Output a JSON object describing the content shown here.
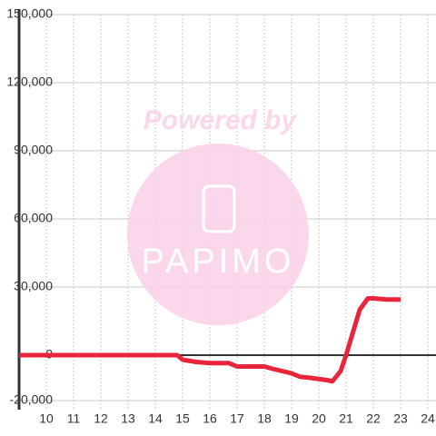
{
  "chart_data": {
    "type": "line",
    "x": [
      9,
      14.8,
      15,
      15.5,
      16,
      16.7,
      17,
      18,
      18.3,
      19,
      19.3,
      19.7,
      20,
      20.3,
      20.5,
      20.8,
      21,
      21.5,
      21.8,
      22,
      22.5,
      23
    ],
    "series": [
      {
        "color": "#e8253b",
        "values": [
          0,
          0,
          -2000,
          -3000,
          -3500,
          -3500,
          -5000,
          -5000,
          -6000,
          -8000,
          -9500,
          -10000,
          -10500,
          -11000,
          -11500,
          -7000,
          0,
          20000,
          25000,
          25000,
          24500,
          24500
        ]
      }
    ],
    "xlim": [
      9,
      24.3
    ],
    "xticks": [
      10,
      11,
      12,
      13,
      14,
      15,
      16,
      17,
      18,
      19,
      20,
      21,
      22,
      23,
      24
    ],
    "ylim": [
      -20000,
      150000
    ],
    "yticks": [
      {
        "value": -20000,
        "label": "-20,000"
      },
      0,
      {
        "value": 30000,
        "label": "30,000"
      },
      {
        "value": 60000,
        "label": "60,000"
      },
      {
        "value": 90000,
        "label": "90,000"
      },
      {
        "value": 120000,
        "label": "120,000"
      },
      {
        "value": 150000,
        "label": "150,000"
      }
    ],
    "grid": true,
    "watermark": {
      "top": "Powered by",
      "brand": "PAPIMO"
    }
  }
}
